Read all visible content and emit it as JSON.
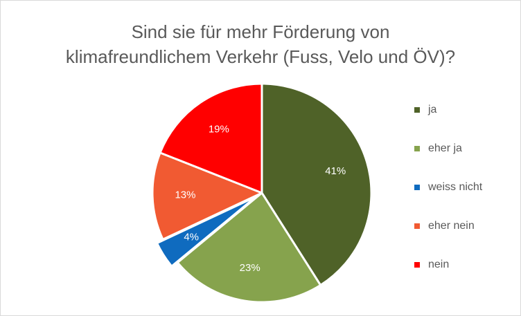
{
  "chart_data": {
    "type": "pie",
    "title_lines": [
      "Sind sie für mehr Förderung von",
      "klimafreundlichem Verkehr (Fuss, Velo und ÖV)?"
    ],
    "slices": [
      {
        "label": "ja",
        "value": 41,
        "display": "41%",
        "color": "#4f6228",
        "exploded": false
      },
      {
        "label": "eher ja",
        "value": 23,
        "display": "23%",
        "color": "#86a34d",
        "exploded": false
      },
      {
        "label": "weiss nicht",
        "value": 4,
        "display": "4%",
        "color": "#0f6bbf",
        "exploded": true
      },
      {
        "label": "eher nein",
        "value": 13,
        "display": "13%",
        "color": "#f15a32",
        "exploded": false
      },
      {
        "label": "nein",
        "value": 19,
        "display": "19%",
        "color": "#ff0000",
        "exploded": false
      }
    ],
    "legend_position": "right",
    "start_angle_deg": 0,
    "direction": "clockwise"
  }
}
